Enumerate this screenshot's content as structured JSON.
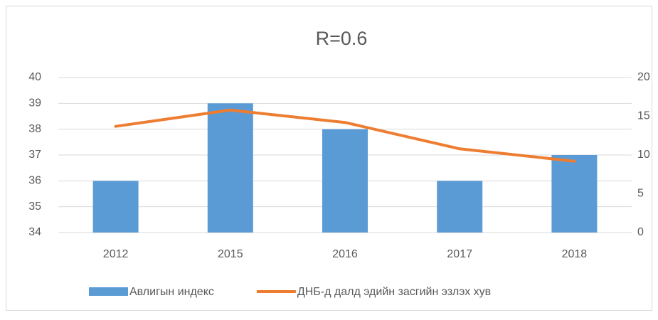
{
  "chart_data": {
    "type": "bar",
    "title": "R=0.6",
    "categories": [
      "2012",
      "2015",
      "2016",
      "2017",
      "2018"
    ],
    "series": [
      {
        "name": "Авлигын индекс",
        "type": "bar",
        "color": "#5b9bd5",
        "values": [
          36,
          39,
          38,
          36,
          37
        ]
      },
      {
        "name": "ДНБ-д далд эдийн засгийн эзлэх хув",
        "type": "line",
        "axis": "y2",
        "color": "#ed7d31",
        "values": [
          13.7,
          15.8,
          14.2,
          10.8,
          9.2
        ]
      }
    ],
    "ylim": [
      34,
      40
    ],
    "yticks": [
      34,
      35,
      36,
      37,
      38,
      39,
      40
    ],
    "y2lim": [
      0,
      20
    ],
    "y2ticks": [
      0,
      5,
      10,
      15,
      20
    ],
    "grid": true,
    "legend": "bottom"
  }
}
